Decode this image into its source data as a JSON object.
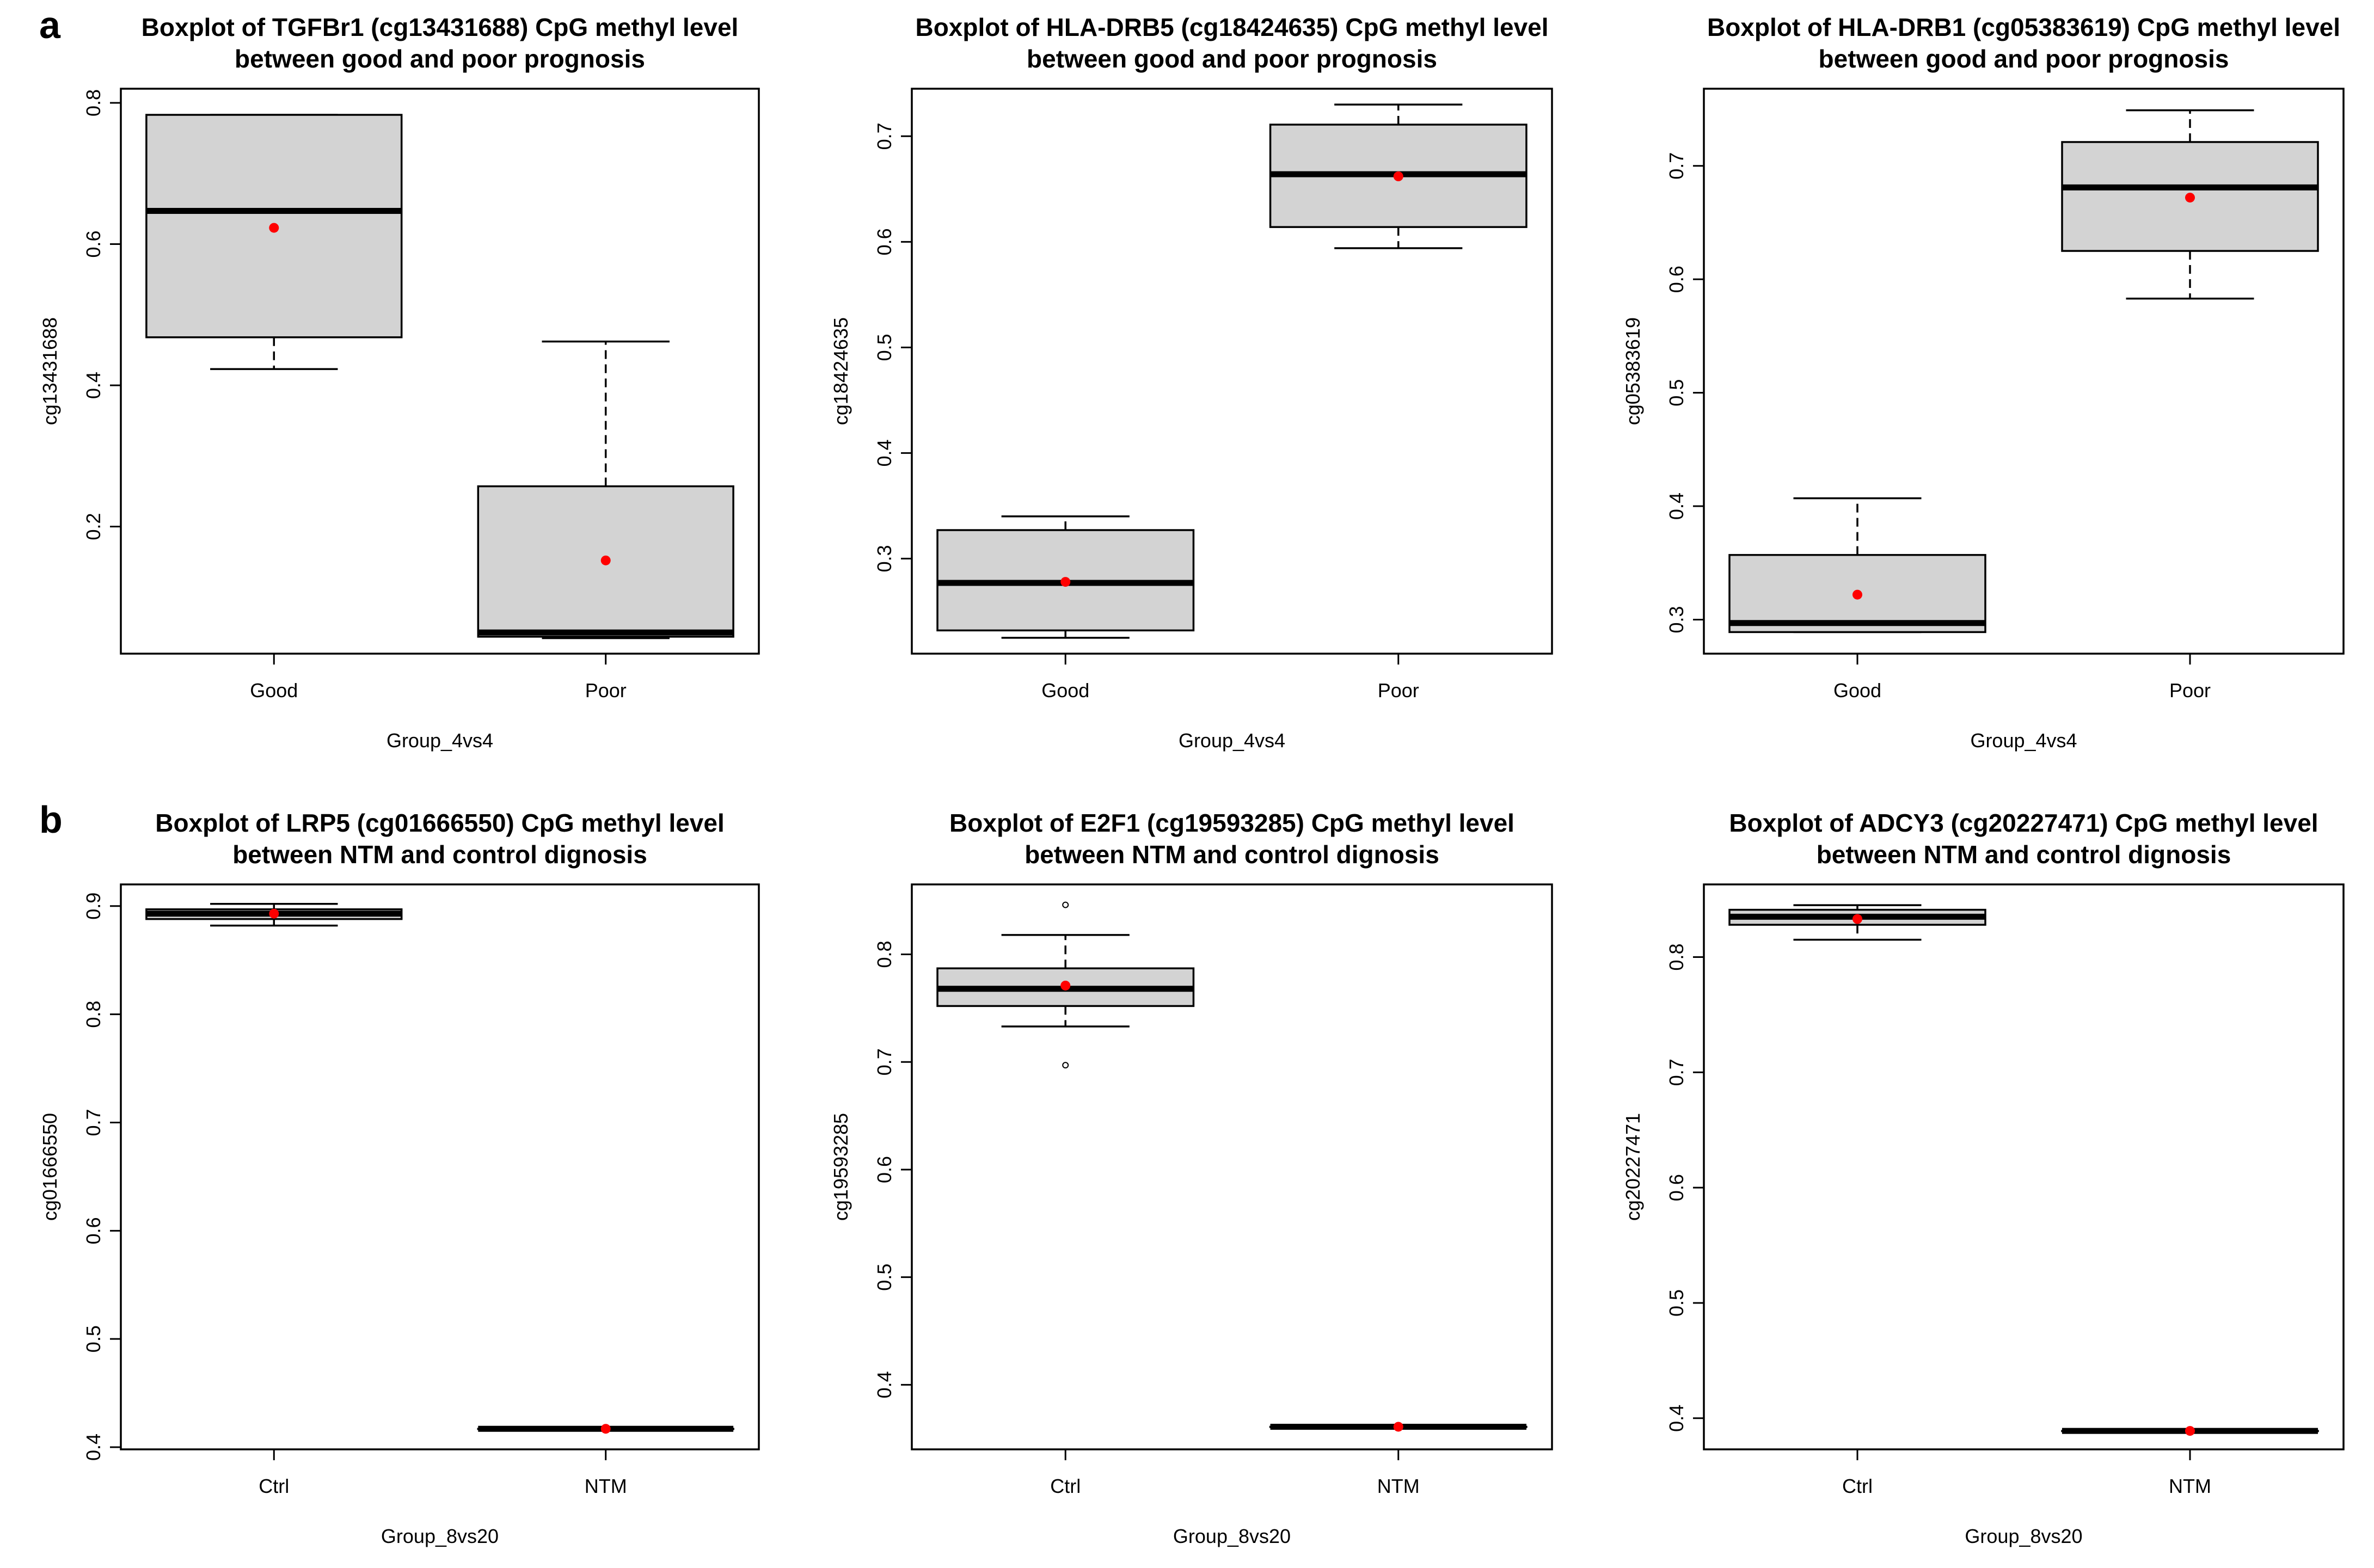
{
  "panel_labels": [
    "a",
    "b"
  ],
  "colors": {
    "box_fill": "#d3d3d3",
    "median": "#000000",
    "mean_point": "#ff0000",
    "frame": "#000000"
  },
  "chart_data": [
    {
      "type": "boxplot",
      "title": [
        "Boxplot of TGFBr1 (cg13431688) CpG methyl level",
        "between good and poor prognosis"
      ],
      "xlabel": "Group_4vs4",
      "ylabel": "cg13431688",
      "categories": [
        "Good",
        "Poor"
      ],
      "ylim": [
        0.02,
        0.82
      ],
      "yticks": [
        0.2,
        0.4,
        0.6,
        0.8
      ],
      "boxes": [
        {
          "whisker_low": 0.423,
          "q1": 0.468,
          "median": 0.647,
          "q3": 0.783,
          "whisker_high": 0.783,
          "mean": 0.623,
          "outliers": []
        },
        {
          "whisker_low": 0.042,
          "q1": 0.044,
          "median": 0.05,
          "q3": 0.257,
          "whisker_high": 0.462,
          "mean": 0.152,
          "outliers": []
        }
      ]
    },
    {
      "type": "boxplot",
      "title": [
        "Boxplot of HLA-DRB5 (cg18424635) CpG methyl level",
        "between good and poor prognosis"
      ],
      "xlabel": "Group_4vs4",
      "ylabel": "cg18424635",
      "categories": [
        "Good",
        "Poor"
      ],
      "ylim": [
        0.21,
        0.745
      ],
      "yticks": [
        0.3,
        0.4,
        0.5,
        0.6,
        0.7
      ],
      "boxes": [
        {
          "whisker_low": 0.225,
          "q1": 0.232,
          "median": 0.277,
          "q3": 0.327,
          "whisker_high": 0.34,
          "mean": 0.278,
          "outliers": []
        },
        {
          "whisker_low": 0.594,
          "q1": 0.614,
          "median": 0.664,
          "q3": 0.711,
          "whisker_high": 0.73,
          "mean": 0.662,
          "outliers": []
        }
      ]
    },
    {
      "type": "boxplot",
      "title": [
        "Boxplot of HLA-DRB1 (cg05383619) CpG methyl level",
        "between good and poor prognosis"
      ],
      "xlabel": "Group_4vs4",
      "ylabel": "cg05383619",
      "categories": [
        "Good",
        "Poor"
      ],
      "ylim": [
        0.27,
        0.768
      ],
      "yticks": [
        0.3,
        0.4,
        0.5,
        0.6,
        0.7
      ],
      "boxes": [
        {
          "whisker_low": 0.289,
          "q1": 0.289,
          "median": 0.297,
          "q3": 0.357,
          "whisker_high": 0.407,
          "mean": 0.322,
          "outliers": []
        },
        {
          "whisker_low": 0.583,
          "q1": 0.625,
          "median": 0.681,
          "q3": 0.721,
          "whisker_high": 0.749,
          "mean": 0.672,
          "outliers": []
        }
      ]
    },
    {
      "type": "boxplot",
      "title": [
        "Boxplot of LRP5 (cg01666550) CpG methyl level",
        "between NTM and control dignosis"
      ],
      "xlabel": "Group_8vs20",
      "ylabel": "cg01666550",
      "categories": [
        "Ctrl",
        "NTM"
      ],
      "ylim": [
        0.398,
        0.92
      ],
      "yticks": [
        0.4,
        0.5,
        0.6,
        0.7,
        0.8,
        0.9
      ],
      "boxes": [
        {
          "whisker_low": 0.882,
          "q1": 0.888,
          "median": 0.893,
          "q3": 0.897,
          "whisker_high": 0.902,
          "mean": 0.893,
          "outliers": []
        },
        {
          "whisker_low": 0.417,
          "q1": 0.417,
          "median": 0.417,
          "q3": 0.417,
          "whisker_high": 0.417,
          "mean": 0.417,
          "outliers": []
        }
      ]
    },
    {
      "type": "boxplot",
      "title": [
        "Boxplot of E2F1 (cg19593285) CpG methyl level",
        "between NTM and control dignosis"
      ],
      "xlabel": "Group_8vs20",
      "ylabel": "cg19593285",
      "categories": [
        "Ctrl",
        "NTM"
      ],
      "ylim": [
        0.34,
        0.865
      ],
      "yticks": [
        0.4,
        0.5,
        0.6,
        0.7,
        0.8
      ],
      "boxes": [
        {
          "whisker_low": 0.733,
          "q1": 0.752,
          "median": 0.768,
          "q3": 0.787,
          "whisker_high": 0.818,
          "mean": 0.771,
          "outliers": [
            0.846,
            0.697
          ]
        },
        {
          "whisker_low": 0.361,
          "q1": 0.361,
          "median": 0.361,
          "q3": 0.361,
          "whisker_high": 0.361,
          "mean": 0.361,
          "outliers": []
        }
      ]
    },
    {
      "type": "boxplot",
      "title": [
        "Boxplot of ADCY3 (cg20227471) CpG methyl level",
        "between NTM and control dignosis"
      ],
      "xlabel": "Group_8vs20",
      "ylabel": "cg20227471",
      "categories": [
        "Ctrl",
        "NTM"
      ],
      "ylim": [
        0.373,
        0.863
      ],
      "yticks": [
        0.4,
        0.5,
        0.6,
        0.7,
        0.8
      ],
      "boxes": [
        {
          "whisker_low": 0.815,
          "q1": 0.828,
          "median": 0.835,
          "q3": 0.841,
          "whisker_high": 0.845,
          "mean": 0.833,
          "outliers": []
        },
        {
          "whisker_low": 0.389,
          "q1": 0.389,
          "median": 0.389,
          "q3": 0.389,
          "whisker_high": 0.389,
          "mean": 0.389,
          "outliers": []
        }
      ]
    }
  ]
}
